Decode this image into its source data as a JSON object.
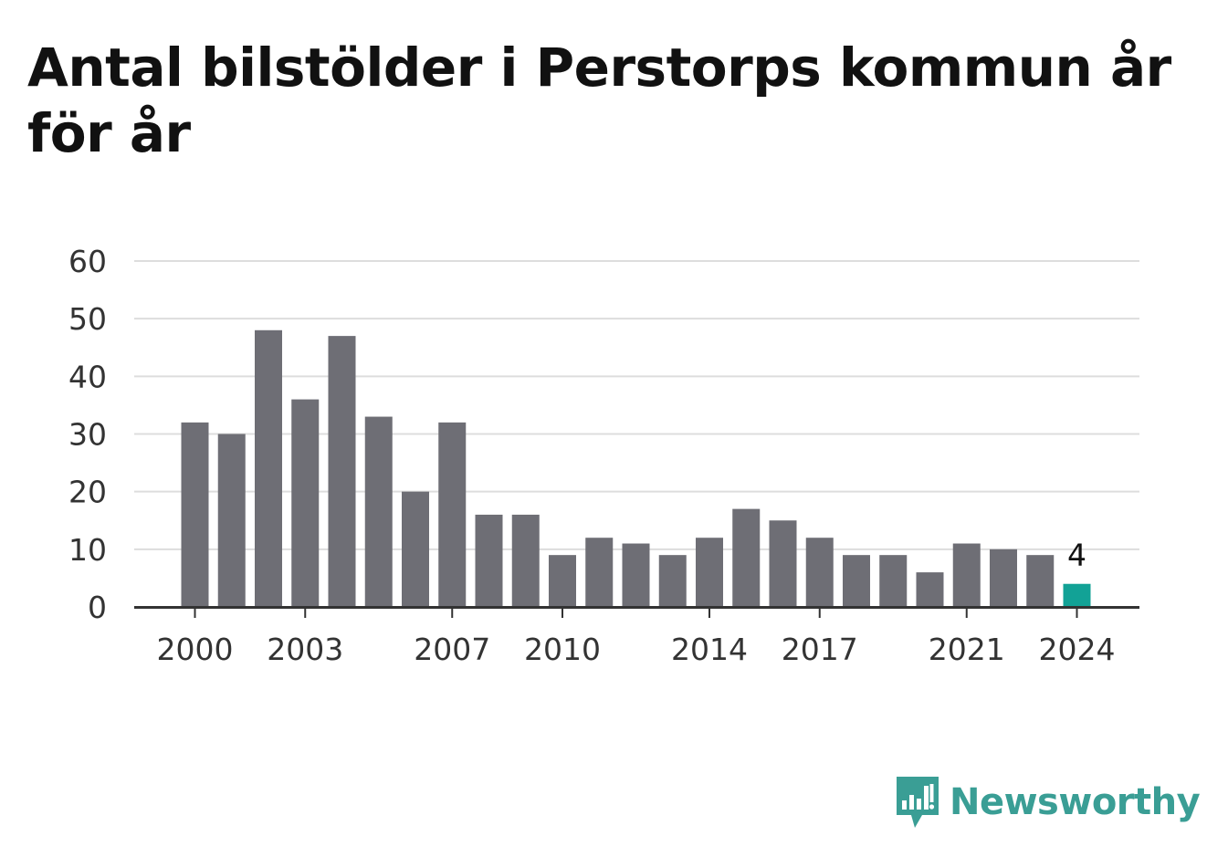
{
  "chart_data": {
    "type": "bar",
    "title": "Antal bilstölder i Perstorps kommun år för år",
    "categories": [
      "2000",
      "2001",
      "2002",
      "2003",
      "2004",
      "2005",
      "2006",
      "2007",
      "2008",
      "2009",
      "2010",
      "2011",
      "2012",
      "2013",
      "2014",
      "2015",
      "2016",
      "2017",
      "2018",
      "2019",
      "2020",
      "2021",
      "2022",
      "2023",
      "2024"
    ],
    "values": [
      32,
      30,
      48,
      36,
      47,
      33,
      20,
      32,
      16,
      16,
      9,
      12,
      11,
      9,
      12,
      17,
      15,
      12,
      9,
      9,
      6,
      11,
      10,
      9,
      4
    ],
    "x_tick_labels": [
      "2000",
      "2003",
      "2007",
      "2010",
      "2014",
      "2017",
      "2021",
      "2024"
    ],
    "y_ticks": [
      0,
      10,
      20,
      30,
      40,
      50,
      60
    ],
    "ylim": [
      0,
      60
    ],
    "grid": true,
    "highlight": {
      "category": "2024",
      "label": "4"
    },
    "colors": {
      "bar": "#6e6e75",
      "highlight": "#12a296",
      "grid": "#dddddd",
      "axis": "#333333"
    }
  },
  "brand": {
    "name": "Newsworthy",
    "icon": "newsworthy-logo-icon",
    "color": "#3a9e95"
  }
}
